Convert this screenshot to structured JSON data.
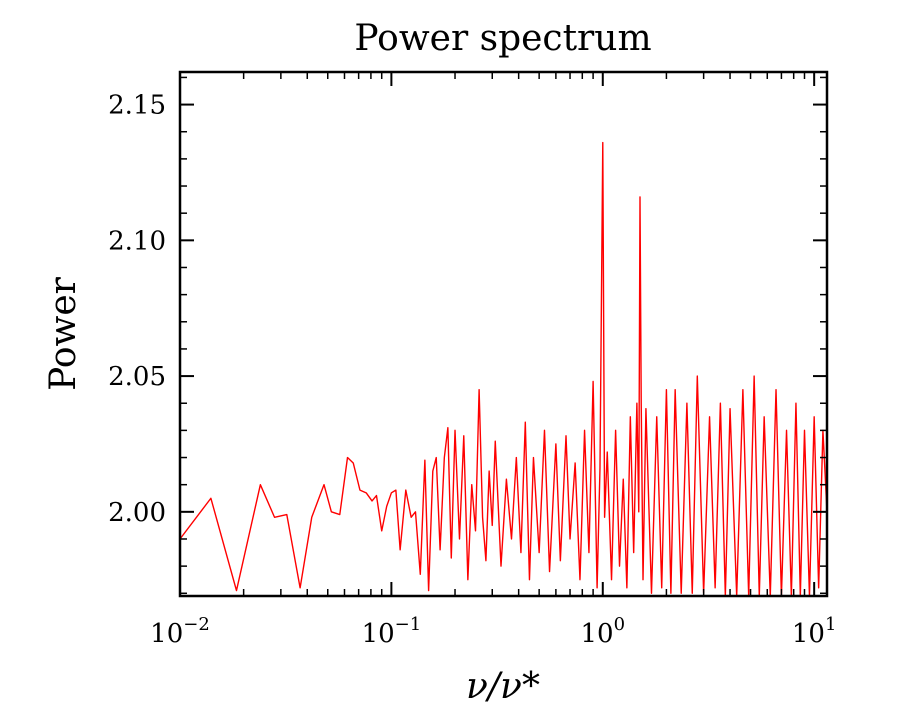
{
  "chart_data": {
    "type": "line",
    "title": "Power spectrum",
    "xlabel": "ν/ν*",
    "ylabel": "Power",
    "xscale": "log",
    "xlim": [
      0.01,
      11.5
    ],
    "ylim": [
      1.969,
      2.162
    ],
    "grid": false,
    "line_color": "#ff0000",
    "x_ticks": [
      {
        "value": 0.01,
        "base": "10",
        "exp": "−2"
      },
      {
        "value": 0.1,
        "base": "10",
        "exp": "−1"
      },
      {
        "value": 1,
        "base": "10",
        "exp": "0"
      },
      {
        "value": 10,
        "base": "10",
        "exp": "1"
      }
    ],
    "y_ticks": [
      "2.00",
      "2.05",
      "2.10",
      "2.15"
    ],
    "y_tick_values": [
      2.0,
      2.05,
      2.1,
      2.15
    ],
    "series": [
      {
        "color": "#ff0000",
        "x": [
          0.01,
          0.014,
          0.0185,
          0.024,
          0.028,
          0.032,
          0.037,
          0.042,
          0.048,
          0.052,
          0.057,
          0.062,
          0.066,
          0.071,
          0.076,
          0.081,
          0.085,
          0.09,
          0.095,
          0.1,
          0.105,
          0.11,
          0.117,
          0.124,
          0.13,
          0.137,
          0.144,
          0.15,
          0.157,
          0.163,
          0.17,
          0.178,
          0.185,
          0.192,
          0.2,
          0.21,
          0.22,
          0.23,
          0.24,
          0.25,
          0.26,
          0.27,
          0.28,
          0.29,
          0.3,
          0.31,
          0.33,
          0.35,
          0.37,
          0.39,
          0.41,
          0.43,
          0.45,
          0.47,
          0.5,
          0.53,
          0.56,
          0.6,
          0.63,
          0.67,
          0.7,
          0.74,
          0.78,
          0.82,
          0.86,
          0.9,
          0.94,
          0.97,
          1.0,
          1.02,
          1.05,
          1.1,
          1.15,
          1.2,
          1.25,
          1.3,
          1.35,
          1.4,
          1.45,
          1.48,
          1.5,
          1.52,
          1.55,
          1.6,
          1.7,
          1.8,
          1.9,
          2.0,
          2.1,
          2.2,
          2.35,
          2.5,
          2.65,
          2.8,
          3.0,
          3.2,
          3.4,
          3.6,
          3.8,
          4.0,
          4.3,
          4.6,
          4.9,
          5.2,
          5.5,
          5.8,
          6.2,
          6.6,
          7.0,
          7.4,
          7.8,
          8.2,
          8.6,
          9.0,
          9.5,
          10.0,
          10.5,
          11.0,
          11.5
        ],
        "y": [
          1.99,
          2.005,
          1.971,
          2.01,
          1.998,
          1.999,
          1.972,
          1.998,
          2.01,
          2.0,
          1.999,
          2.02,
          2.018,
          2.008,
          2.007,
          2.004,
          2.006,
          1.993,
          2.002,
          2.007,
          2.008,
          1.986,
          2.008,
          1.998,
          2.0,
          1.977,
          2.019,
          1.971,
          2.015,
          2.02,
          1.986,
          2.02,
          2.031,
          1.983,
          2.03,
          1.99,
          2.028,
          1.975,
          2.01,
          1.993,
          2.045,
          1.998,
          1.982,
          2.015,
          1.995,
          2.026,
          1.98,
          2.012,
          1.99,
          2.02,
          1.985,
          2.033,
          1.975,
          2.02,
          1.985,
          2.03,
          1.978,
          2.025,
          1.982,
          2.028,
          1.99,
          2.018,
          1.975,
          2.03,
          1.985,
          2.048,
          1.972,
          2.016,
          2.136,
          1.998,
          2.022,
          1.975,
          2.03,
          1.98,
          2.012,
          1.972,
          2.035,
          1.985,
          2.04,
          2.0,
          2.116,
          2.04,
          1.975,
          2.038,
          1.97,
          2.035,
          1.972,
          2.045,
          1.97,
          2.045,
          1.97,
          2.04,
          1.97,
          2.05,
          1.97,
          2.035,
          1.972,
          2.04,
          1.969,
          2.038,
          1.969,
          2.045,
          1.969,
          2.05,
          1.969,
          2.035,
          1.969,
          2.045,
          1.969,
          2.03,
          1.969,
          2.04,
          1.969,
          2.03,
          1.969,
          2.035,
          1.972,
          2.03,
          2.0
        ]
      }
    ]
  }
}
